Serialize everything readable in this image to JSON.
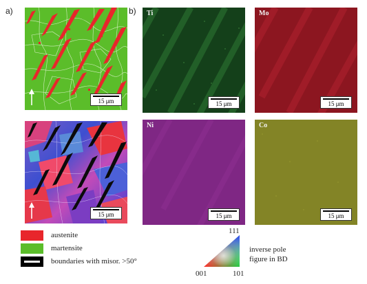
{
  "panel_labels": {
    "a": "a)",
    "b": "b)"
  },
  "maps": {
    "phase": {
      "scale_label": "15 μm",
      "colors": {
        "austenite": "#e8262b",
        "martensite": "#5bbd2a"
      }
    },
    "ipf": {
      "scale_label": "15 μm"
    },
    "ti": {
      "title": "Ti",
      "scale_label": "15 μm",
      "color": "#1d5e22"
    },
    "mo": {
      "title": "Mo",
      "scale_label": "15 μm",
      "color": "#a51b24"
    },
    "ni": {
      "title": "Ni",
      "scale_label": "15 μm",
      "color": "#8b2a8f"
    },
    "co": {
      "title": "Co",
      "scale_label": "15 μm",
      "color": "#8d8d2b"
    }
  },
  "legend": [
    {
      "label": "austenite",
      "color": "#e8262b"
    },
    {
      "label": "martensite",
      "color": "#5bbd2a"
    },
    {
      "label": "boundaries with misor. >50°",
      "color": "#000000"
    }
  ],
  "ipf_key": {
    "vertex_top": "111",
    "vertex_left": "001",
    "vertex_right": "101",
    "caption_line1": "inverse pole",
    "caption_line2": "figure in BD"
  }
}
